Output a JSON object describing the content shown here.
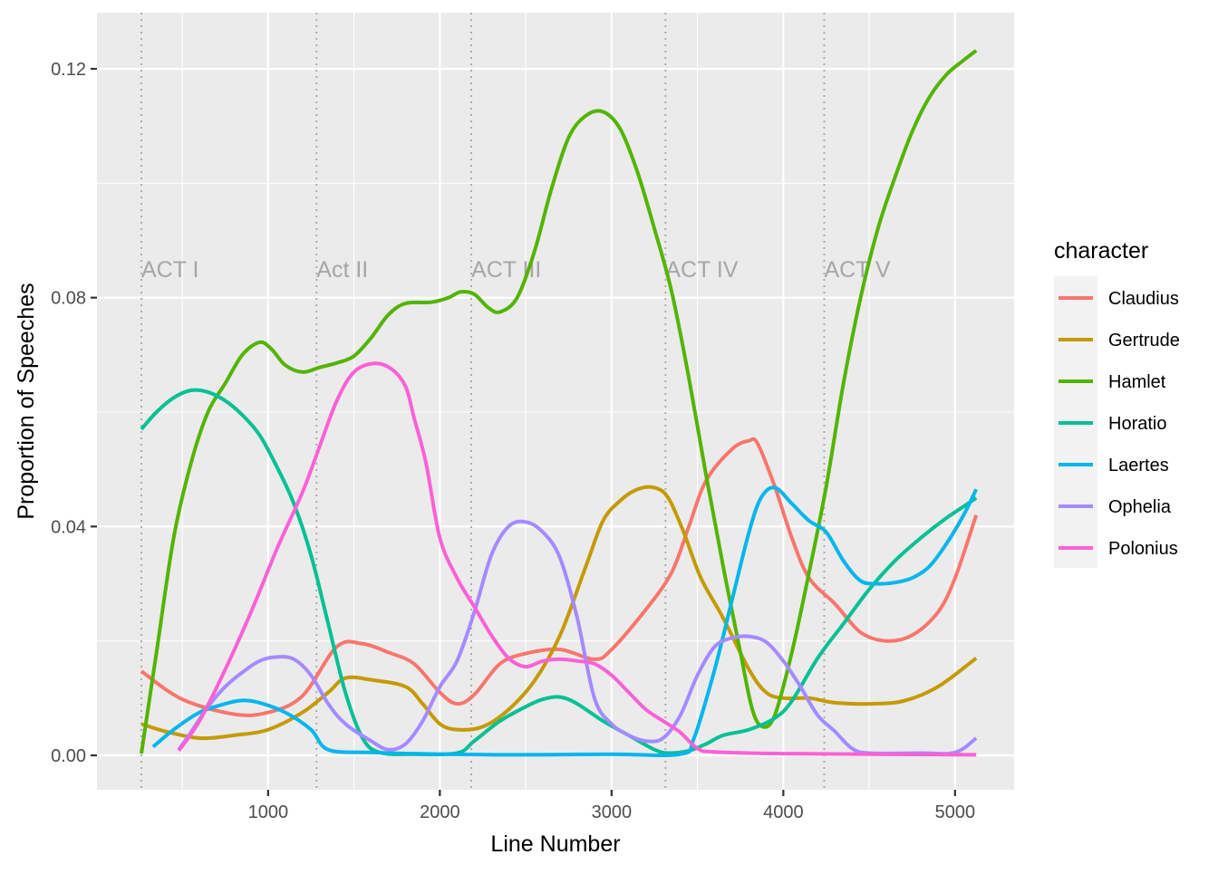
{
  "chart_data": {
    "type": "line",
    "xlabel": "Line Number",
    "ylabel": "Proportion of Speeches",
    "xlim": [
      0,
      5400
    ],
    "ylim": [
      -0.0063,
      0.1292
    ],
    "x_ticks": [
      1000,
      2000,
      3000,
      4000,
      5000
    ],
    "x_tick_labels": [
      "1000",
      "2000",
      "3000",
      "4000",
      "5000"
    ],
    "y_ticks": [
      0,
      0.04,
      0.08,
      0.12
    ],
    "y_tick_labels": [
      "0.00",
      "0.04",
      "0.08",
      "0.12"
    ],
    "grid": true,
    "legend_title": "character",
    "legend_position": "right",
    "acts": [
      {
        "label": "ACT I",
        "x": 262
      },
      {
        "label": "Act II",
        "x": 1282
      },
      {
        "label": "ACT III",
        "x": 2183
      },
      {
        "label": "ACT IV",
        "x": 3314
      },
      {
        "label": "ACT V",
        "x": 4238
      }
    ],
    "act_label_y": 0.085,
    "series": [
      {
        "name": "Claudius",
        "color": "#F8766D",
        "points": [
          [
            262,
            0.0147
          ],
          [
            500,
            0.0098
          ],
          [
            800,
            0.0072
          ],
          [
            1000,
            0.0075
          ],
          [
            1200,
            0.0104
          ],
          [
            1400,
            0.019
          ],
          [
            1550,
            0.0195
          ],
          [
            1700,
            0.018
          ],
          [
            1850,
            0.016
          ],
          [
            2000,
            0.011
          ],
          [
            2100,
            0.009
          ],
          [
            2200,
            0.0106
          ],
          [
            2350,
            0.016
          ],
          [
            2500,
            0.0178
          ],
          [
            2700,
            0.0185
          ],
          [
            2900,
            0.0168
          ],
          [
            3000,
            0.0185
          ],
          [
            3200,
            0.0255
          ],
          [
            3350,
            0.032
          ],
          [
            3450,
            0.04
          ],
          [
            3550,
            0.048
          ],
          [
            3700,
            0.0535
          ],
          [
            3800,
            0.055
          ],
          [
            3850,
            0.0545
          ],
          [
            3950,
            0.047
          ],
          [
            4050,
            0.038
          ],
          [
            4150,
            0.031
          ],
          [
            4300,
            0.0265
          ],
          [
            4450,
            0.0215
          ],
          [
            4600,
            0.02
          ],
          [
            4750,
            0.021
          ],
          [
            4900,
            0.025
          ],
          [
            5000,
            0.031
          ],
          [
            5123,
            0.042
          ]
        ]
      },
      {
        "name": "Gertrude",
        "color": "#C49A00",
        "points": [
          [
            262,
            0.0055
          ],
          [
            400,
            0.0042
          ],
          [
            600,
            0.003
          ],
          [
            800,
            0.0035
          ],
          [
            1000,
            0.0045
          ],
          [
            1200,
            0.0075
          ],
          [
            1350,
            0.011
          ],
          [
            1450,
            0.0135
          ],
          [
            1600,
            0.0132
          ],
          [
            1800,
            0.012
          ],
          [
            1900,
            0.009
          ],
          [
            2000,
            0.0055
          ],
          [
            2100,
            0.0045
          ],
          [
            2250,
            0.005
          ],
          [
            2400,
            0.008
          ],
          [
            2550,
            0.013
          ],
          [
            2700,
            0.021
          ],
          [
            2850,
            0.033
          ],
          [
            2950,
            0.041
          ],
          [
            3050,
            0.0445
          ],
          [
            3150,
            0.0465
          ],
          [
            3250,
            0.0468
          ],
          [
            3330,
            0.045
          ],
          [
            3420,
            0.039
          ],
          [
            3520,
            0.031
          ],
          [
            3650,
            0.024
          ],
          [
            3800,
            0.015
          ],
          [
            3900,
            0.011
          ],
          [
            4000,
            0.01
          ],
          [
            4150,
            0.01
          ],
          [
            4300,
            0.0092
          ],
          [
            4500,
            0.009
          ],
          [
            4700,
            0.0095
          ],
          [
            4900,
            0.012
          ],
          [
            5123,
            0.017
          ]
        ]
      },
      {
        "name": "Hamlet",
        "color": "#53B400",
        "points": [
          [
            262,
            0.0003
          ],
          [
            350,
            0.018
          ],
          [
            450,
            0.038
          ],
          [
            550,
            0.051
          ],
          [
            650,
            0.06
          ],
          [
            750,
            0.065
          ],
          [
            850,
            0.07
          ],
          [
            950,
            0.0722
          ],
          [
            1020,
            0.071
          ],
          [
            1100,
            0.0682
          ],
          [
            1200,
            0.067
          ],
          [
            1300,
            0.0678
          ],
          [
            1400,
            0.0686
          ],
          [
            1500,
            0.0698
          ],
          [
            1600,
            0.073
          ],
          [
            1700,
            0.077
          ],
          [
            1800,
            0.079
          ],
          [
            1950,
            0.0792
          ],
          [
            2050,
            0.08
          ],
          [
            2120,
            0.081
          ],
          [
            2200,
            0.0806
          ],
          [
            2280,
            0.0783
          ],
          [
            2350,
            0.0775
          ],
          [
            2450,
            0.08
          ],
          [
            2550,
            0.088
          ],
          [
            2650,
            0.099
          ],
          [
            2750,
            0.108
          ],
          [
            2850,
            0.1118
          ],
          [
            2950,
            0.1125
          ],
          [
            3050,
            0.1095
          ],
          [
            3150,
            0.102
          ],
          [
            3250,
            0.092
          ],
          [
            3350,
            0.081
          ],
          [
            3450,
            0.066
          ],
          [
            3550,
            0.049
          ],
          [
            3650,
            0.033
          ],
          [
            3750,
            0.018
          ],
          [
            3820,
            0.008
          ],
          [
            3880,
            0.005
          ],
          [
            3950,
            0.007
          ],
          [
            4050,
            0.018
          ],
          [
            4150,
            0.032
          ],
          [
            4250,
            0.047
          ],
          [
            4350,
            0.065
          ],
          [
            4450,
            0.08
          ],
          [
            4550,
            0.092
          ],
          [
            4650,
            0.101
          ],
          [
            4750,
            0.109
          ],
          [
            4850,
            0.115
          ],
          [
            4950,
            0.119
          ],
          [
            5050,
            0.1215
          ],
          [
            5123,
            0.1232
          ]
        ]
      },
      {
        "name": "Horatio",
        "color": "#00C094",
        "points": [
          [
            262,
            0.057
          ],
          [
            350,
            0.06
          ],
          [
            450,
            0.0625
          ],
          [
            550,
            0.0638
          ],
          [
            650,
            0.0635
          ],
          [
            750,
            0.062
          ],
          [
            850,
            0.0595
          ],
          [
            950,
            0.056
          ],
          [
            1050,
            0.0505
          ],
          [
            1150,
            0.044
          ],
          [
            1250,
            0.035
          ],
          [
            1350,
            0.023
          ],
          [
            1450,
            0.011
          ],
          [
            1550,
            0.003
          ],
          [
            1650,
            0.0005
          ],
          [
            1850,
            0.0002
          ],
          [
            2100,
            0.0004
          ],
          [
            2200,
            0.0025
          ],
          [
            2350,
            0.006
          ],
          [
            2500,
            0.0085
          ],
          [
            2600,
            0.0098
          ],
          [
            2700,
            0.0102
          ],
          [
            2800,
            0.009
          ],
          [
            2950,
            0.006
          ],
          [
            3100,
            0.0035
          ],
          [
            3250,
            0.001
          ],
          [
            3330,
            0.0004
          ],
          [
            3450,
            0.0008
          ],
          [
            3550,
            0.002
          ],
          [
            3650,
            0.0035
          ],
          [
            3800,
            0.0045
          ],
          [
            3950,
            0.0065
          ],
          [
            4050,
            0.0095
          ],
          [
            4200,
            0.017
          ],
          [
            4350,
            0.023
          ],
          [
            4500,
            0.029
          ],
          [
            4650,
            0.034
          ],
          [
            4800,
            0.038
          ],
          [
            4950,
            0.0415
          ],
          [
            5050,
            0.0435
          ],
          [
            5123,
            0.045
          ]
        ]
      },
      {
        "name": "Laertes",
        "color": "#00B6EB",
        "points": [
          [
            330,
            0.0015
          ],
          [
            450,
            0.0045
          ],
          [
            600,
            0.0075
          ],
          [
            750,
            0.009
          ],
          [
            850,
            0.0096
          ],
          [
            950,
            0.0092
          ],
          [
            1100,
            0.0075
          ],
          [
            1250,
            0.0045
          ],
          [
            1350,
            0.001
          ],
          [
            1600,
            0.0005
          ],
          [
            2000,
            0.0002
          ],
          [
            2500,
            0.0001
          ],
          [
            3000,
            0.0002
          ],
          [
            3400,
            0.0002
          ],
          [
            3480,
            0.003
          ],
          [
            3600,
            0.015
          ],
          [
            3700,
            0.027
          ],
          [
            3800,
            0.039
          ],
          [
            3870,
            0.045
          ],
          [
            3950,
            0.0468
          ],
          [
            4050,
            0.044
          ],
          [
            4150,
            0.041
          ],
          [
            4250,
            0.039
          ],
          [
            4350,
            0.034
          ],
          [
            4450,
            0.0305
          ],
          [
            4550,
            0.03
          ],
          [
            4650,
            0.0302
          ],
          [
            4750,
            0.031
          ],
          [
            4850,
            0.033
          ],
          [
            4950,
            0.037
          ],
          [
            5050,
            0.042
          ],
          [
            5123,
            0.0465
          ]
        ]
      },
      {
        "name": "Ophelia",
        "color": "#A58AFF",
        "points": [
          [
            480,
            0.001
          ],
          [
            550,
            0.004
          ],
          [
            650,
            0.0085
          ],
          [
            750,
            0.012
          ],
          [
            850,
            0.0145
          ],
          [
            950,
            0.0165
          ],
          [
            1050,
            0.0172
          ],
          [
            1150,
            0.0168
          ],
          [
            1250,
            0.014
          ],
          [
            1350,
            0.009
          ],
          [
            1450,
            0.0055
          ],
          [
            1600,
            0.0025
          ],
          [
            1700,
            0.001
          ],
          [
            1800,
            0.002
          ],
          [
            1900,
            0.006
          ],
          [
            2000,
            0.012
          ],
          [
            2100,
            0.0165
          ],
          [
            2200,
            0.025
          ],
          [
            2300,
            0.035
          ],
          [
            2400,
            0.04
          ],
          [
            2500,
            0.0408
          ],
          [
            2600,
            0.039
          ],
          [
            2700,
            0.0345
          ],
          [
            2800,
            0.024
          ],
          [
            2900,
            0.01
          ],
          [
            3000,
            0.0055
          ],
          [
            3100,
            0.0035
          ],
          [
            3200,
            0.0025
          ],
          [
            3300,
            0.003
          ],
          [
            3400,
            0.007
          ],
          [
            3500,
            0.014
          ],
          [
            3600,
            0.019
          ],
          [
            3700,
            0.0205
          ],
          [
            3800,
            0.0208
          ],
          [
            3900,
            0.0198
          ],
          [
            4000,
            0.0165
          ],
          [
            4100,
            0.012
          ],
          [
            4200,
            0.007
          ],
          [
            4300,
            0.0042
          ],
          [
            4400,
            0.0012
          ],
          [
            4500,
            0.0004
          ],
          [
            4800,
            0.0004
          ],
          [
            5000,
            0.0005
          ],
          [
            5123,
            0.003
          ]
        ]
      },
      {
        "name": "Polonius",
        "color": "#FB61D7",
        "points": [
          [
            480,
            0.0008
          ],
          [
            600,
            0.006
          ],
          [
            750,
            0.015
          ],
          [
            900,
            0.025
          ],
          [
            1050,
            0.036
          ],
          [
            1200,
            0.046
          ],
          [
            1300,
            0.054
          ],
          [
            1400,
            0.062
          ],
          [
            1500,
            0.067
          ],
          [
            1620,
            0.0685
          ],
          [
            1720,
            0.0675
          ],
          [
            1800,
            0.0645
          ],
          [
            1850,
            0.059
          ],
          [
            1920,
            0.051
          ],
          [
            2000,
            0.038
          ],
          [
            2100,
            0.031
          ],
          [
            2200,
            0.026
          ],
          [
            2300,
            0.021
          ],
          [
            2400,
            0.017
          ],
          [
            2500,
            0.0155
          ],
          [
            2600,
            0.0165
          ],
          [
            2700,
            0.0168
          ],
          [
            2800,
            0.0165
          ],
          [
            2900,
            0.016
          ],
          [
            3000,
            0.014
          ],
          [
            3100,
            0.011
          ],
          [
            3200,
            0.008
          ],
          [
            3300,
            0.006
          ],
          [
            3400,
            0.004
          ],
          [
            3500,
            0.0012
          ],
          [
            3600,
            0.0006
          ],
          [
            4000,
            0.0003
          ],
          [
            4500,
            0.0002
          ],
          [
            5123,
            0.0001
          ]
        ]
      }
    ]
  }
}
